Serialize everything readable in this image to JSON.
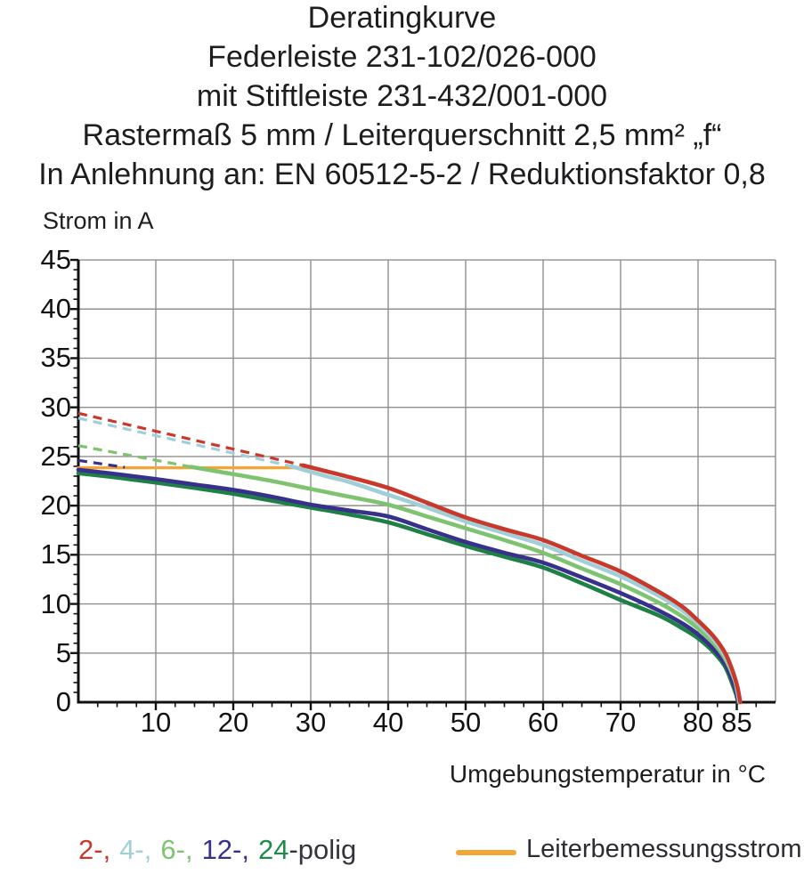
{
  "chart_data": {
    "type": "line",
    "title_lines": [
      "Deratingkurve",
      "Federleiste 231-102/026-000",
      "mit Stiftleiste 231-432/001-000",
      "Rastermaß 5 mm / Leiterquerschnitt 2,5 mm² „f“",
      "In Anlehnung an: EN 60512-5-2 / Reduktionsfaktor 0,8"
    ],
    "xlabel": "Umgebungstemperatur in °C",
    "ylabel": "Strom in A",
    "xlim": [
      0,
      90
    ],
    "ylim": [
      0,
      45
    ],
    "x_major_ticks": [
      10,
      20,
      30,
      40,
      50,
      60,
      70,
      80,
      85
    ],
    "x_minor_tick_step": 2.5,
    "y_major_ticks": [
      0,
      5,
      10,
      15,
      20,
      25,
      30,
      35,
      40,
      45
    ],
    "y_minor_tick_step": 1,
    "grid": {
      "x_step": 10,
      "y_step": 5,
      "color": "#8f8f8f"
    },
    "axis_color": "#111111",
    "series": [
      {
        "name": "2-polig",
        "color": "#c8392c",
        "dashed": [
          [
            0,
            29.4
          ],
          [
            29,
            24.1
          ]
        ],
        "solid": [
          [
            29,
            24.1
          ],
          [
            32,
            23.5
          ],
          [
            35,
            22.9
          ],
          [
            40,
            21.8
          ],
          [
            45,
            20.3
          ],
          [
            50,
            18.8
          ],
          [
            55,
            17.6
          ],
          [
            60,
            16.5
          ],
          [
            65,
            14.9
          ],
          [
            70,
            13.3
          ],
          [
            75,
            11.2
          ],
          [
            78,
            9.7
          ],
          [
            80,
            8.3
          ],
          [
            82,
            6.7
          ],
          [
            83.5,
            5.0
          ],
          [
            84.5,
            3.1
          ],
          [
            85.1,
            1.5
          ],
          [
            85.45,
            0
          ]
        ]
      },
      {
        "name": "4-polig",
        "color": "#a0cfd8",
        "dashed": [
          [
            0,
            28.9
          ],
          [
            27.5,
            24.0
          ]
        ],
        "solid": [
          [
            27.5,
            24.0
          ],
          [
            32,
            23.0
          ],
          [
            35,
            22.4
          ],
          [
            40,
            21.1
          ],
          [
            45,
            19.8
          ],
          [
            50,
            18.4
          ],
          [
            55,
            17.2
          ],
          [
            60,
            16.0
          ],
          [
            65,
            14.4
          ],
          [
            70,
            12.8
          ],
          [
            75,
            10.8
          ],
          [
            78,
            9.3
          ],
          [
            80,
            8.0
          ],
          [
            82,
            6.4
          ],
          [
            83.5,
            4.7
          ],
          [
            84.6,
            2.7
          ],
          [
            85.05,
            1.2
          ],
          [
            85.35,
            0
          ]
        ]
      },
      {
        "name": "6-polig",
        "color": "#7ec36f",
        "dashed": [
          [
            0,
            26.1
          ],
          [
            14.5,
            23.95
          ]
        ],
        "solid": [
          [
            14.5,
            23.95
          ],
          [
            20,
            23.2
          ],
          [
            25,
            22.5
          ],
          [
            30,
            21.7
          ],
          [
            35,
            20.9
          ],
          [
            40,
            20.1
          ],
          [
            45,
            18.9
          ],
          [
            50,
            17.7
          ],
          [
            55,
            16.5
          ],
          [
            60,
            15.2
          ],
          [
            65,
            13.6
          ],
          [
            70,
            12.0
          ],
          [
            75,
            10.1
          ],
          [
            78,
            8.7
          ],
          [
            80,
            7.5
          ],
          [
            82,
            6.0
          ],
          [
            83.5,
            4.4
          ],
          [
            84.7,
            2.3
          ],
          [
            85.1,
            1.0
          ],
          [
            85.3,
            0
          ]
        ]
      },
      {
        "name": "12-polig",
        "color": "#37318c",
        "dashed": [
          [
            0,
            24.6
          ],
          [
            6,
            23.9
          ]
        ],
        "solid": [
          [
            0,
            23.65
          ],
          [
            5,
            23.2
          ],
          [
            10,
            22.7
          ],
          [
            15,
            22.15
          ],
          [
            20,
            21.6
          ],
          [
            25,
            20.9
          ],
          [
            30,
            20.1
          ],
          [
            35,
            19.5
          ],
          [
            40,
            18.9
          ],
          [
            45,
            17.6
          ],
          [
            50,
            16.3
          ],
          [
            55,
            15.2
          ],
          [
            60,
            14.2
          ],
          [
            65,
            12.7
          ],
          [
            70,
            11.1
          ],
          [
            75,
            9.3
          ],
          [
            78,
            8.0
          ],
          [
            80,
            6.9
          ],
          [
            82,
            5.4
          ],
          [
            83.5,
            3.9
          ],
          [
            84.6,
            1.9
          ],
          [
            85.0,
            0.8
          ],
          [
            85.2,
            0
          ]
        ]
      },
      {
        "name": "24-polig",
        "color": "#1f8046",
        "dashed": [],
        "solid": [
          [
            0,
            23.3
          ],
          [
            5,
            22.85
          ],
          [
            10,
            22.35
          ],
          [
            15,
            21.8
          ],
          [
            20,
            21.2
          ],
          [
            25,
            20.5
          ],
          [
            30,
            19.8
          ],
          [
            35,
            19.1
          ],
          [
            40,
            18.3
          ],
          [
            45,
            17.1
          ],
          [
            50,
            15.9
          ],
          [
            55,
            14.8
          ],
          [
            60,
            13.7
          ],
          [
            65,
            12.1
          ],
          [
            70,
            10.4
          ],
          [
            75,
            8.8
          ],
          [
            78,
            7.5
          ],
          [
            80,
            6.5
          ],
          [
            82,
            5.1
          ],
          [
            83.5,
            3.6
          ],
          [
            84.5,
            1.7
          ],
          [
            84.95,
            0.7
          ],
          [
            85.15,
            0
          ]
        ]
      }
    ],
    "reference_line": {
      "name": "Leiterbemessungsstrom",
      "color": "#f2a539",
      "value_a": 23.85,
      "x_range": [
        0,
        29
      ]
    },
    "legend_position": "bottom"
  },
  "legend": {
    "poles": [
      {
        "label": "2-,",
        "color": "#c8392c"
      },
      {
        "label": "4-,",
        "color": "#a0cfd8"
      },
      {
        "label": "6-,",
        "color": "#7ec36f"
      },
      {
        "label": "12-,",
        "color": "#37318c"
      },
      {
        "label": "24",
        "color": "#1f8a4c"
      }
    ],
    "poles_suffix": "-polig",
    "reference_label": "Leiterbemessungsstrom"
  }
}
